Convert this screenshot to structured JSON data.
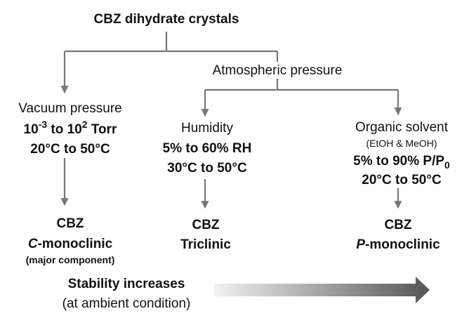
{
  "title": "CBZ dihydrate crystals",
  "branch_label": "Atmospheric pressure",
  "columns": [
    {
      "heading": "Vacuum pressure",
      "pressure": {
        "base": "10",
        "exp1": "-3",
        "mid": " to 10",
        "exp2": "2",
        "tail": " Torr"
      },
      "temperature": "20°C to 50°C",
      "product": {
        "name": "CBZ",
        "italic": "C",
        "form": "-monoclinic",
        "note": "(major component)"
      }
    },
    {
      "heading": "Humidity",
      "condition": "5% to 60% RH",
      "temperature": "30°C to 50°C",
      "product": {
        "name": "CBZ",
        "form": "Triclinic"
      }
    },
    {
      "heading": "Organic solvent",
      "solvents": "(EtOH & MeOH)",
      "condition": {
        "text": "5% to 90% P/P",
        "sub": "0"
      },
      "temperature": "20°C to 50°C",
      "product": {
        "name": "CBZ",
        "italic": "P",
        "form": "-monoclinic"
      }
    }
  ],
  "footer": {
    "title": "Stability increases",
    "subtitle": "(at ambient condition)"
  }
}
